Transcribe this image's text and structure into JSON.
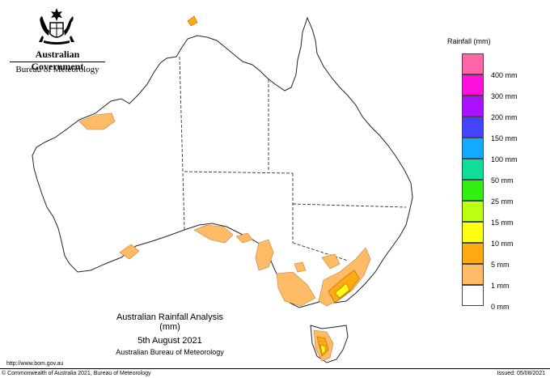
{
  "header": {
    "government": "Australian Government",
    "bureau": "Bureau of Meteorology",
    "crest_icon": "coat-of-arms-icon"
  },
  "legend": {
    "title": "Rainfall (mm)",
    "items": [
      {
        "label": "",
        "color": "#ff66aa"
      },
      {
        "label": "400 mm",
        "color": "#ff11dd"
      },
      {
        "label": "300 mm",
        "color": "#aa11ff"
      },
      {
        "label": "200 mm",
        "color": "#4444ff"
      },
      {
        "label": "150 mm",
        "color": "#11aaff"
      },
      {
        "label": "100 mm",
        "color": "#11dd99"
      },
      {
        "label": "50 mm",
        "color": "#33ee11"
      },
      {
        "label": "25 mm",
        "color": "#bbff11"
      },
      {
        "label": "15 mm",
        "color": "#ffff11"
      },
      {
        "label": "10 mm",
        "color": "#ffaa11"
      },
      {
        "label": "5 mm",
        "color": "#ffbb66"
      },
      {
        "label": "1 mm",
        "color": "#ffffff"
      },
      {
        "label": "0 mm",
        "color": "#ffffff"
      }
    ]
  },
  "caption": {
    "title": "Australian Rainfall Analysis (mm)",
    "date": "5th August 2021",
    "source": "Australian Bureau of Meteorology"
  },
  "footer": {
    "url": "http://www.bom.gov.au",
    "copyright": "© Commonwealth of Australia 2021, Bureau of Meteorology",
    "issued": "Issued: 05/08/2021"
  },
  "colors": {
    "light_rain": "#ffbb66",
    "moderate_rain": "#ffaa11",
    "heavy_rain": "#ffff11"
  }
}
